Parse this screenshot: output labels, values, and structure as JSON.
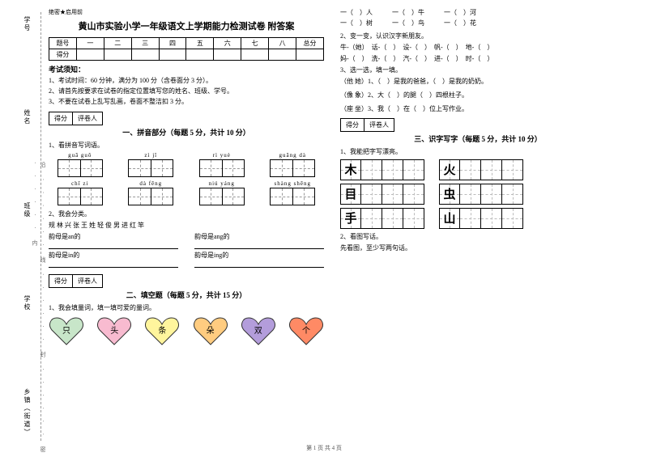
{
  "spine": {
    "labels": [
      "学号",
      "姓名",
      "班级",
      "学校",
      "乡镇（街道）"
    ],
    "note": "沿 · · · · · · 线 · · · · · · 封 · · · · · · 密 · · · · · · 内"
  },
  "header": {
    "secret": "绝密★启用前",
    "title": "黄山市实验小学一年级语文上学期能力检测试卷 附答案"
  },
  "score": {
    "cols": [
      "题号",
      "一",
      "二",
      "三",
      "四",
      "五",
      "六",
      "七",
      "八",
      "总分"
    ],
    "row": "得分"
  },
  "rules": {
    "head": "考试须知：",
    "items": [
      "1、考试时间：60 分钟，满分为 100 分（含卷面分 3 分）。",
      "2、请首先按要求在试卷的指定位置填写您的姓名、班级、学号。",
      "3、不要在试卷上乱写乱画，卷面不整洁扣 3 分。"
    ]
  },
  "markbox": {
    "a": "得分",
    "b": "评卷人"
  },
  "s1": {
    "title": "一、拼音部分（每题 5 分，共计 10 分）",
    "q1": "1、看拼音写词语。",
    "row1": [
      {
        "py": "guā  guǒ"
      },
      {
        "py": "zì   jǐ"
      },
      {
        "py": "rì  yuè"
      },
      {
        "py": "guāng  dà"
      }
    ],
    "row2": [
      {
        "py": "chǐ  zi"
      },
      {
        "py": "dà  fēng"
      },
      {
        "py": "niú  yáng"
      },
      {
        "py": "shàng shēng"
      }
    ],
    "q2": "2、我会分类。",
    "chars": "规   林   兴   张   王   姓   轻   俊   男   进   红   竿",
    "c1": "韵母是an的",
    "c2": "韵母是ang的",
    "c3": "韵母是in的",
    "c4": "韵母是ing的"
  },
  "s2": {
    "title": "二、填空题（每题 5 分，共计 15 分）",
    "q1": "1、我会填量词，填一填可爱的量词。",
    "hearts": [
      {
        "t": "只",
        "c": "#c8e6c9"
      },
      {
        "t": "头",
        "c": "#f8bbd0"
      },
      {
        "t": "条",
        "c": "#fff59d"
      },
      {
        "t": "朵",
        "c": "#ffcc80"
      },
      {
        "t": "双",
        "c": "#b39ddb"
      },
      {
        "t": "个",
        "c": "#ff8a65"
      }
    ]
  },
  "right": {
    "fill1": "一（　）人　　　一（　）牛　　　一（　）河",
    "fill2": "一（　）树　　　一（　）鸟　　　一（　）花",
    "q2": "2、变一变，认识汉字新朋友。",
    "r2a": "牛-（她）　话-（　）　设-（　）　帆-（　）　地-（　）",
    "r2b": "妈-（　）　洗-（　）　汽-（　）　进-（　）　时-（　）",
    "q3": "3、选一选，填一填。",
    "r3a": "（他 她）1、（　）是我的爸爸，（　）是我的奶奶。",
    "r3b": "（像 象）2、大（　）的腿（　）四根柱子。",
    "r3c": "（座 坐）3、我（　）在（　）位上写作业。"
  },
  "s3": {
    "title": "三、识字写字（每题 5 分，共计 10 分）",
    "q1": "1、我能把字写漂亮。",
    "chars": [
      [
        "木",
        "火"
      ],
      [
        "目",
        "虫"
      ],
      [
        "手",
        "山"
      ]
    ],
    "q2": "2、看图写话。",
    "q2b": "先看图，至少写两句话。"
  },
  "footer": "第 1 页 共 4 页"
}
